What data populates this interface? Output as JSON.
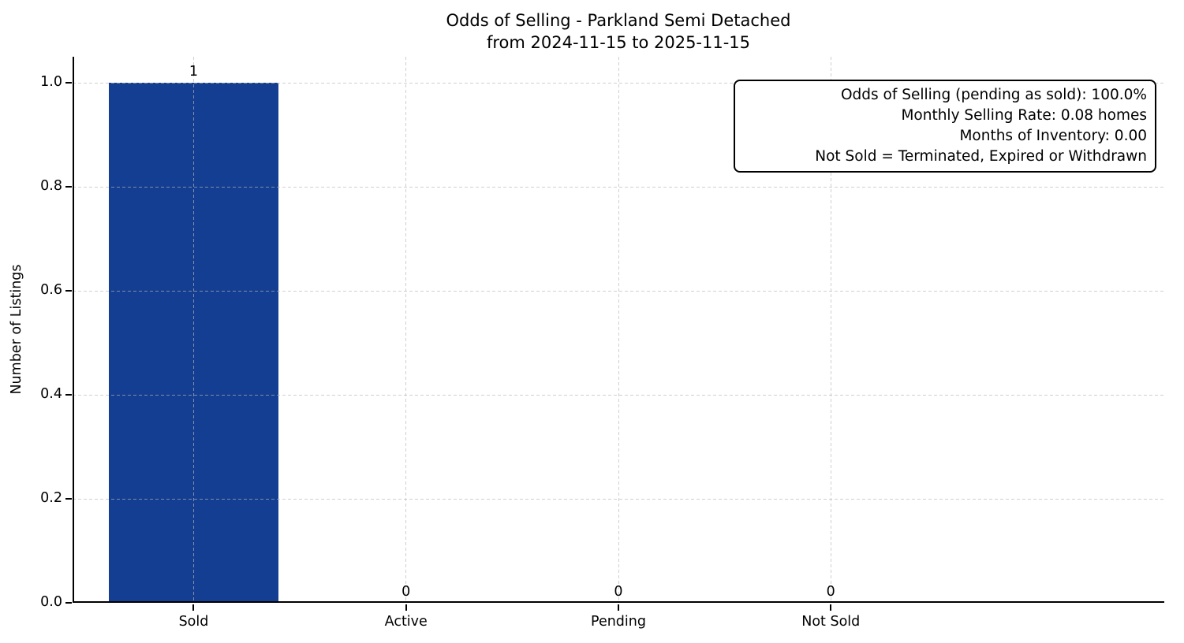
{
  "chart_data": {
    "type": "bar",
    "title": "Odds of Selling - Parkland Semi Detached",
    "subtitle": "from 2024-11-15 to 2025-11-15",
    "xlabel": "",
    "ylabel": "Number of Listings",
    "categories": [
      "Sold",
      "Active",
      "Pending",
      "Not Sold"
    ],
    "values": [
      1,
      0,
      0,
      0
    ],
    "bar_value_labels": [
      "1",
      "0",
      "0",
      "0"
    ],
    "ylim": [
      0,
      1.05
    ],
    "ytick_labels": [
      "0.0",
      "0.2",
      "0.4",
      "0.6",
      "0.8",
      "1.0"
    ],
    "ytick_values": [
      0.0,
      0.2,
      0.4,
      0.6,
      0.8,
      1.0
    ],
    "bar_color": "#143e91",
    "grid": "dashed, horizontal and vertical, drawn over bars",
    "gridline_color": "#d9d9d9",
    "legend_position": "none",
    "stats_box": {
      "position": "top-right",
      "lines": [
        "Odds of Selling (pending as sold): 100.0%",
        "Monthly Selling Rate: 0.08 homes",
        "Months of Inventory: 0.00",
        "Not Sold = Terminated, Expired or Withdrawn"
      ]
    }
  }
}
